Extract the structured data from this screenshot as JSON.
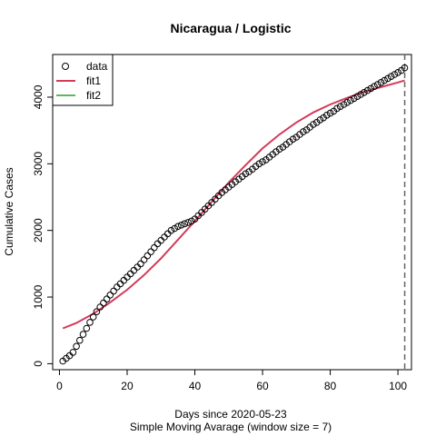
{
  "chart_data": {
    "type": "scatter",
    "title": "Nicaragua / Logistic",
    "xlabel": "Days since 2020-05-23",
    "xlabel_sub": "Simple Moving Avarage (window size = 7)",
    "ylabel": "Cumulative Cases",
    "xlim": [
      -2,
      104
    ],
    "ylim": [
      -90,
      4640
    ],
    "x_ticks": [
      0,
      20,
      40,
      60,
      80,
      100
    ],
    "y_ticks": [
      0,
      1000,
      2000,
      3000,
      4000
    ],
    "legend_position": "top-left",
    "vline": {
      "x": 102,
      "style": "dashed",
      "color": "#666666"
    },
    "series": [
      {
        "name": "data",
        "kind": "points",
        "marker": "open-circle",
        "color": "#000000",
        "x": [
          1,
          2,
          3,
          4,
          5,
          6,
          7,
          8,
          9,
          10,
          11,
          12,
          13,
          14,
          15,
          16,
          17,
          18,
          19,
          20,
          21,
          22,
          23,
          24,
          25,
          26,
          27,
          28,
          29,
          30,
          31,
          32,
          33,
          34,
          35,
          36,
          37,
          38,
          39,
          40,
          41,
          42,
          43,
          44,
          45,
          46,
          47,
          48,
          49,
          50,
          51,
          52,
          53,
          54,
          55,
          56,
          57,
          58,
          59,
          60,
          61,
          62,
          63,
          64,
          65,
          66,
          67,
          68,
          69,
          70,
          71,
          72,
          73,
          74,
          75,
          76,
          77,
          78,
          79,
          80,
          81,
          82,
          83,
          84,
          85,
          86,
          87,
          88,
          89,
          90,
          91,
          92,
          93,
          94,
          95,
          96,
          97,
          98,
          99,
          100,
          101,
          102
        ],
        "y": [
          40,
          80,
          120,
          170,
          260,
          350,
          440,
          530,
          620,
          700,
          780,
          850,
          910,
          970,
          1030,
          1090,
          1150,
          1200,
          1250,
          1300,
          1350,
          1400,
          1450,
          1500,
          1560,
          1620,
          1680,
          1740,
          1800,
          1850,
          1900,
          1950,
          2000,
          2030,
          2060,
          2080,
          2100,
          2120,
          2140,
          2170,
          2220,
          2270,
          2320,
          2370,
          2420,
          2470,
          2520,
          2570,
          2610,
          2650,
          2690,
          2730,
          2770,
          2810,
          2850,
          2880,
          2920,
          2960,
          3000,
          3030,
          3060,
          3100,
          3140,
          3180,
          3220,
          3250,
          3290,
          3330,
          3370,
          3400,
          3440,
          3480,
          3510,
          3550,
          3590,
          3620,
          3660,
          3690,
          3730,
          3760,
          3790,
          3830,
          3860,
          3890,
          3920,
          3950,
          3980,
          4010,
          4040,
          4070,
          4100,
          4130,
          4160,
          4190,
          4220,
          4250,
          4280,
          4310,
          4340,
          4370,
          4400,
          4440
        ]
      },
      {
        "name": "fit1",
        "kind": "line",
        "color": "#d33a5a",
        "x": [
          1,
          5,
          10,
          15,
          20,
          25,
          30,
          35,
          40,
          45,
          50,
          55,
          60,
          65,
          70,
          75,
          80,
          85,
          90,
          95,
          100,
          102
        ],
        "y": [
          530,
          610,
          750,
          920,
          1110,
          1330,
          1580,
          1860,
          2140,
          2430,
          2720,
          2980,
          3230,
          3440,
          3620,
          3770,
          3890,
          3990,
          4080,
          4150,
          4220,
          4250
        ]
      },
      {
        "name": "fit2",
        "kind": "line",
        "color": "#5cb85c",
        "x": [],
        "y": []
      }
    ]
  }
}
